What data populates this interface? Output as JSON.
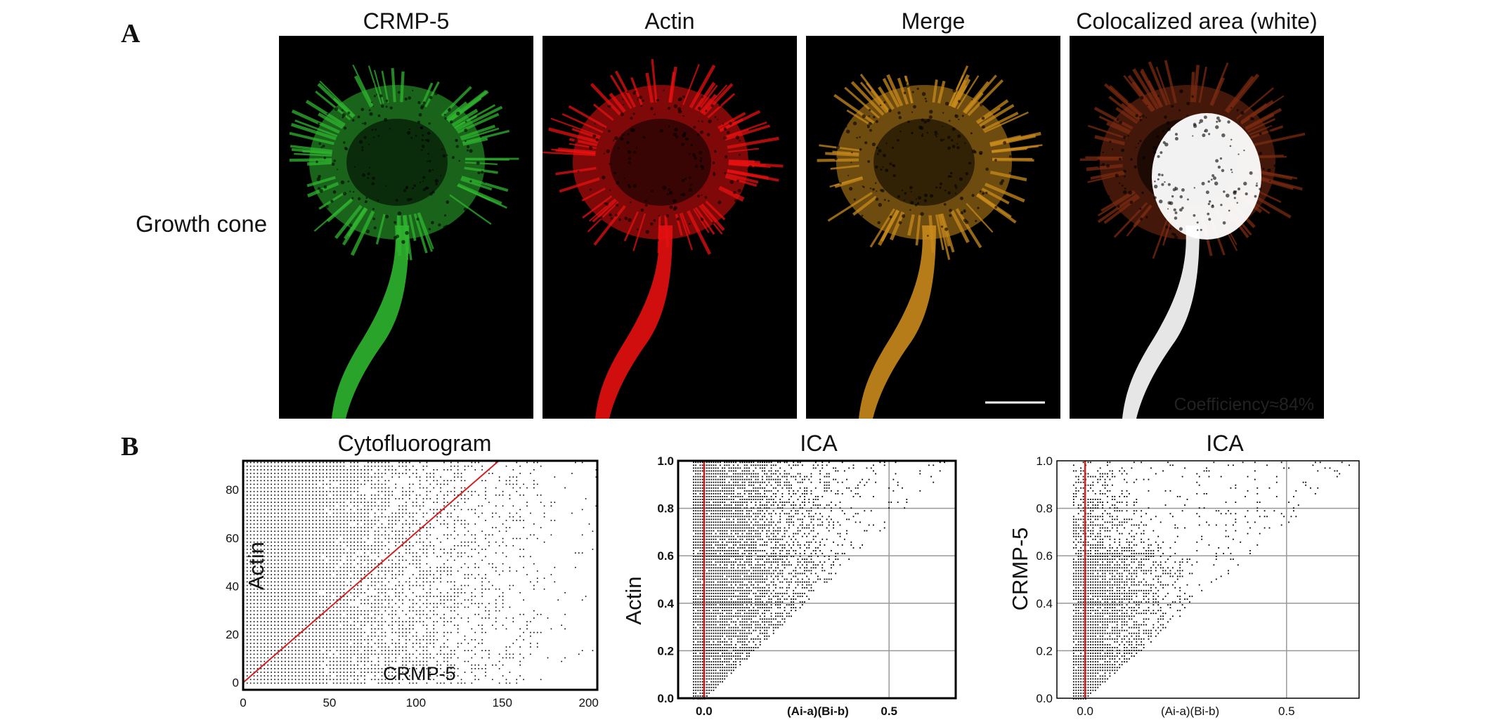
{
  "figure": {
    "panel_a": {
      "letter": "A",
      "row_label": "Growth cone",
      "columns": [
        {
          "title": "CRMP-5",
          "color": "#2fb52f"
        },
        {
          "title": "Actin",
          "color": "#e81010"
        },
        {
          "title": "Merge",
          "color": "#c98a1c"
        },
        {
          "title": "Colocalized area (white)",
          "color": "#ffffff"
        }
      ],
      "coefficient_label": "Coefficiency≈84%"
    },
    "panel_b": {
      "letter": "B"
    }
  },
  "chart_data": [
    {
      "type": "scatter",
      "title": "Cytofluorogram",
      "xlabel": "CRMP-5",
      "ylabel": "Actin",
      "xlim": [
        0,
        205
      ],
      "ylim": [
        -3,
        92
      ],
      "xticks": [
        "0",
        "50",
        "100",
        "150",
        "200"
      ],
      "yticks": [
        "0",
        "20",
        "40",
        "60",
        "80"
      ],
      "regression_line": {
        "x": [
          0,
          148
        ],
        "y": [
          0,
          92
        ],
        "color": "#d42020"
      }
    },
    {
      "type": "scatter",
      "title": "ICA",
      "xlabel": "(Ai-a)(Bi-b)",
      "ylabel": "Actin",
      "xlim": [
        -0.07,
        0.68
      ],
      "ylim": [
        0,
        1.0
      ],
      "xticks": [
        "0.0",
        "0.5"
      ],
      "yticks": [
        "0.0",
        "0.2",
        "0.4",
        "0.6",
        "0.8",
        "1.0"
      ],
      "zero_line_color": "#d42020"
    },
    {
      "type": "scatter",
      "title": "ICA",
      "xlabel": "(Ai-a)(Bi-b)",
      "ylabel": "CRMP-5",
      "xlim": [
        -0.07,
        0.68
      ],
      "ylim": [
        0,
        1.0
      ],
      "xticks": [
        "0.0",
        "0.5"
      ],
      "yticks": [
        "0.0",
        "0.2",
        "0.4",
        "0.6",
        "0.8",
        "1.0"
      ],
      "zero_line_color": "#d42020"
    }
  ]
}
